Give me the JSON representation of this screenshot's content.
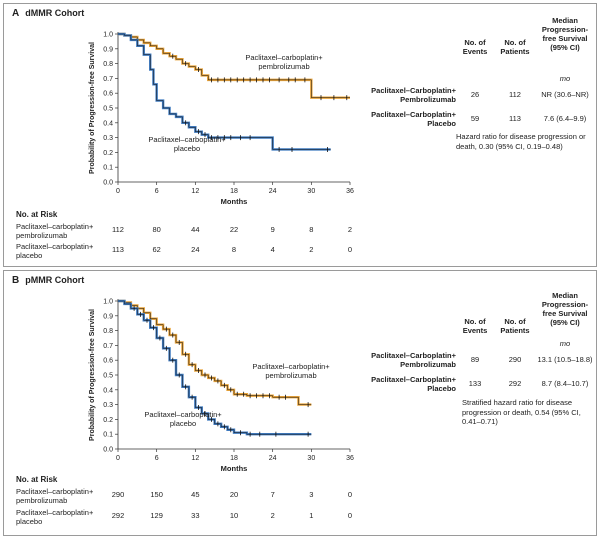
{
  "panels": [
    {
      "letter": "A",
      "title": "dMMR Cohort",
      "table": {
        "headers": [
          "No. of Events",
          "No. of Patients",
          "Median Progression-free Survival (95% CI)"
        ],
        "unit": "mo",
        "rows": [
          {
            "label": "Paclitaxel–Carboplatin+ Pembrolizumab",
            "events": "26",
            "patients": "112",
            "median": "NR (30.6–NR)"
          },
          {
            "label": "Paclitaxel–Carboplatin+ Placebo",
            "events": "59",
            "patients": "113",
            "median": "7.6 (6.4–9.9)"
          }
        ]
      },
      "hazard_note": "Hazard ratio for disease progression or death, 0.30 (95% CI, 0.19–0.48)",
      "at_risk": {
        "title": "No. at Risk",
        "rows": [
          {
            "label": "Paclitaxel–carboplatin+ pembrolizumab",
            "values": [
              "112",
              "80",
              "44",
              "22",
              "9",
              "8",
              "2"
            ]
          },
          {
            "label": "Paclitaxel–carboplatin+ placebo",
            "values": [
              "113",
              "62",
              "24",
              "8",
              "4",
              "2",
              "0"
            ]
          }
        ]
      }
    },
    {
      "letter": "B",
      "title": "pMMR Cohort",
      "table": {
        "headers": [
          "No. of Events",
          "No. of Patients",
          "Median Progression-free Survival (95% CI)"
        ],
        "unit": "mo",
        "rows": [
          {
            "label": "Paclitaxel–Carboplatin+ Pembrolizumab",
            "events": "89",
            "patients": "290",
            "median": "13.1 (10.5–18.8)"
          },
          {
            "label": "Paclitaxel–Carboplatin+ Placebo",
            "events": "133",
            "patients": "292",
            "median": "8.7 (8.4–10.7)"
          }
        ]
      },
      "hazard_note": "Stratified hazard ratio for disease progression or death, 0.54 (95% CI, 0.41–0.71)",
      "at_risk": {
        "title": "No. at Risk",
        "rows": [
          {
            "label": "Paclitaxel–carboplatin+ pembrolizumab",
            "values": [
              "290",
              "150",
              "45",
              "20",
              "7",
              "3",
              "0"
            ]
          },
          {
            "label": "Paclitaxel–carboplatin+ placebo",
            "values": [
              "292",
              "129",
              "33",
              "10",
              "2",
              "1",
              "0"
            ]
          }
        ]
      }
    }
  ],
  "chart_data": [
    {
      "type": "line",
      "title": "dMMR Cohort",
      "xlabel": "Months",
      "ylabel": "Probability of Progression-free Survival",
      "xlim": [
        0,
        36
      ],
      "ylim": [
        0,
        1.0
      ],
      "xticks": [
        "0",
        "6",
        "12",
        "18",
        "24",
        "30",
        "36"
      ],
      "yticks": [
        "0.0",
        "0.1",
        "0.2",
        "0.3",
        "0.4",
        "0.5",
        "0.6",
        "0.7",
        "0.8",
        "0.9",
        "1.0"
      ],
      "series": [
        {
          "name": "Paclitaxel–carboplatin+ pembrolizumab",
          "color": "#e8a33a",
          "steps": [
            [
              0,
              1.0
            ],
            [
              1,
              0.99
            ],
            [
              2,
              0.98
            ],
            [
              3,
              0.96
            ],
            [
              4,
              0.94
            ],
            [
              5,
              0.92
            ],
            [
              6,
              0.9
            ],
            [
              7,
              0.87
            ],
            [
              8,
              0.85
            ],
            [
              9,
              0.83
            ],
            [
              10,
              0.8
            ],
            [
              11,
              0.78
            ],
            [
              12,
              0.76
            ],
            [
              13,
              0.72
            ],
            [
              14,
              0.69
            ],
            [
              15,
              0.69
            ],
            [
              30,
              0.57
            ],
            [
              36,
              0.57
            ]
          ],
          "censor": [
            8.5,
            10.5,
            12.5,
            14.5,
            15.5,
            16.5,
            17.5,
            18.5,
            19.5,
            20.5,
            21.5,
            22.5,
            23.5,
            25,
            26.5,
            27.5,
            29,
            31.5,
            33.5,
            35.5
          ]
        },
        {
          "name": "Paclitaxel–carboplatin+ placebo",
          "color": "#3f7abf",
          "steps": [
            [
              0,
              1.0
            ],
            [
              1,
              0.99
            ],
            [
              2,
              0.96
            ],
            [
              3,
              0.92
            ],
            [
              4,
              0.86
            ],
            [
              5,
              0.76
            ],
            [
              5.5,
              0.66
            ],
            [
              6,
              0.55
            ],
            [
              7,
              0.5
            ],
            [
              8,
              0.46
            ],
            [
              9,
              0.44
            ],
            [
              10,
              0.4
            ],
            [
              11,
              0.37
            ],
            [
              12,
              0.34
            ],
            [
              13,
              0.32
            ],
            [
              14,
              0.3
            ],
            [
              24,
              0.22
            ],
            [
              33,
              0.22
            ]
          ],
          "censor": [
            10.5,
            12.5,
            13.5,
            14.5,
            15.5,
            16.5,
            17.5,
            19,
            20.5,
            25,
            27,
            32.5
          ]
        }
      ],
      "annotations": [
        "Paclitaxel–carboplatin+ pembrolizumab",
        "Paclitaxel–carboplatin+ placebo"
      ]
    },
    {
      "type": "line",
      "title": "pMMR Cohort",
      "xlabel": "Months",
      "ylabel": "Probability of Progression-free Survival",
      "xlim": [
        0,
        36
      ],
      "ylim": [
        0,
        1.0
      ],
      "xticks": [
        "0",
        "6",
        "12",
        "18",
        "24",
        "30",
        "36"
      ],
      "yticks": [
        "0.0",
        "0.1",
        "0.2",
        "0.3",
        "0.4",
        "0.5",
        "0.6",
        "0.7",
        "0.8",
        "0.9",
        "1.0"
      ],
      "series": [
        {
          "name": "Paclitaxel–carboplatin+ pembrolizumab",
          "color": "#e8a33a",
          "steps": [
            [
              0,
              1.0
            ],
            [
              1,
              0.99
            ],
            [
              2,
              0.97
            ],
            [
              3,
              0.95
            ],
            [
              4,
              0.92
            ],
            [
              5,
              0.88
            ],
            [
              6,
              0.84
            ],
            [
              7,
              0.81
            ],
            [
              8,
              0.77
            ],
            [
              9,
              0.72
            ],
            [
              10,
              0.64
            ],
            [
              11,
              0.57
            ],
            [
              12,
              0.53
            ],
            [
              13,
              0.5
            ],
            [
              14,
              0.48
            ],
            [
              15,
              0.46
            ],
            [
              16,
              0.43
            ],
            [
              17,
              0.4
            ],
            [
              18,
              0.37
            ],
            [
              20,
              0.36
            ],
            [
              22,
              0.36
            ],
            [
              24,
              0.35
            ],
            [
              28,
              0.3
            ],
            [
              30,
              0.3
            ]
          ],
          "censor": [
            7.5,
            8.5,
            9.5,
            10.5,
            11.5,
            12.5,
            13.5,
            14.5,
            15.5,
            16.5,
            17.5,
            18.5,
            19.5,
            20.5,
            21.5,
            22.5,
            23.5,
            25,
            26,
            29.5
          ]
        },
        {
          "name": "Paclitaxel–carboplatin+ placebo",
          "color": "#3f7abf",
          "steps": [
            [
              0,
              1.0
            ],
            [
              1,
              0.98
            ],
            [
              2,
              0.95
            ],
            [
              3,
              0.91
            ],
            [
              4,
              0.87
            ],
            [
              5,
              0.82
            ],
            [
              6,
              0.75
            ],
            [
              7,
              0.68
            ],
            [
              8,
              0.6
            ],
            [
              9,
              0.5
            ],
            [
              10,
              0.42
            ],
            [
              11,
              0.35
            ],
            [
              12,
              0.28
            ],
            [
              13,
              0.24
            ],
            [
              14,
              0.2
            ],
            [
              15,
              0.17
            ],
            [
              16,
              0.15
            ],
            [
              17,
              0.13
            ],
            [
              18,
              0.11
            ],
            [
              20,
              0.1
            ],
            [
              30,
              0.1
            ]
          ],
          "censor": [
            2.5,
            3.5,
            4.5,
            5.5,
            6.5,
            7.5,
            8.5,
            9.5,
            10.5,
            11.5,
            12.5,
            13.5,
            14.5,
            15.5,
            16.5,
            17.5,
            19,
            20.5,
            22,
            24.5,
            29.5
          ]
        }
      ],
      "annotations": [
        "Paclitaxel–carboplatin+ pembrolizumab",
        "Paclitaxel–carboplatin+ placebo"
      ]
    }
  ]
}
